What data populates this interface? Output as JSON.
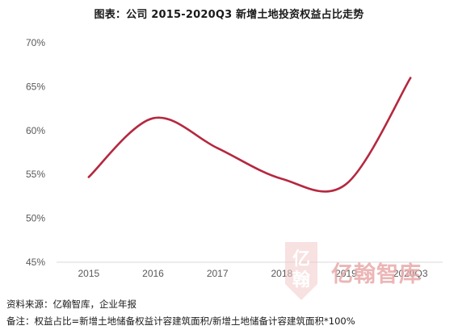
{
  "title": "图表：公司 2015-2020Q3 新增土地投资权益占比走势",
  "chart_data": {
    "type": "line",
    "categories": [
      "2015",
      "2016",
      "2017",
      "2018",
      "2019",
      "2020Q3"
    ],
    "series": [
      {
        "values": [
          54.7,
          61.4,
          58.0,
          54.5,
          53.9,
          66.0
        ]
      }
    ],
    "y_ticks": [
      "45%",
      "50%",
      "55%",
      "60%",
      "65%",
      "70%"
    ],
    "ylim": [
      45,
      70
    ],
    "y_unit": "%",
    "grid": false,
    "smooth": true,
    "line_color": "#b5283f"
  },
  "watermark": {
    "text": "亿翰智库",
    "color": "#e9a9a9",
    "logo_glyphs": [
      "亿",
      "翰"
    ]
  },
  "source": "资料来源：亿翰智库，企业年报",
  "note": "备注：权益占比=新增土地储备权益计容建筑面积/新增土地储备计容建筑面积*100%"
}
